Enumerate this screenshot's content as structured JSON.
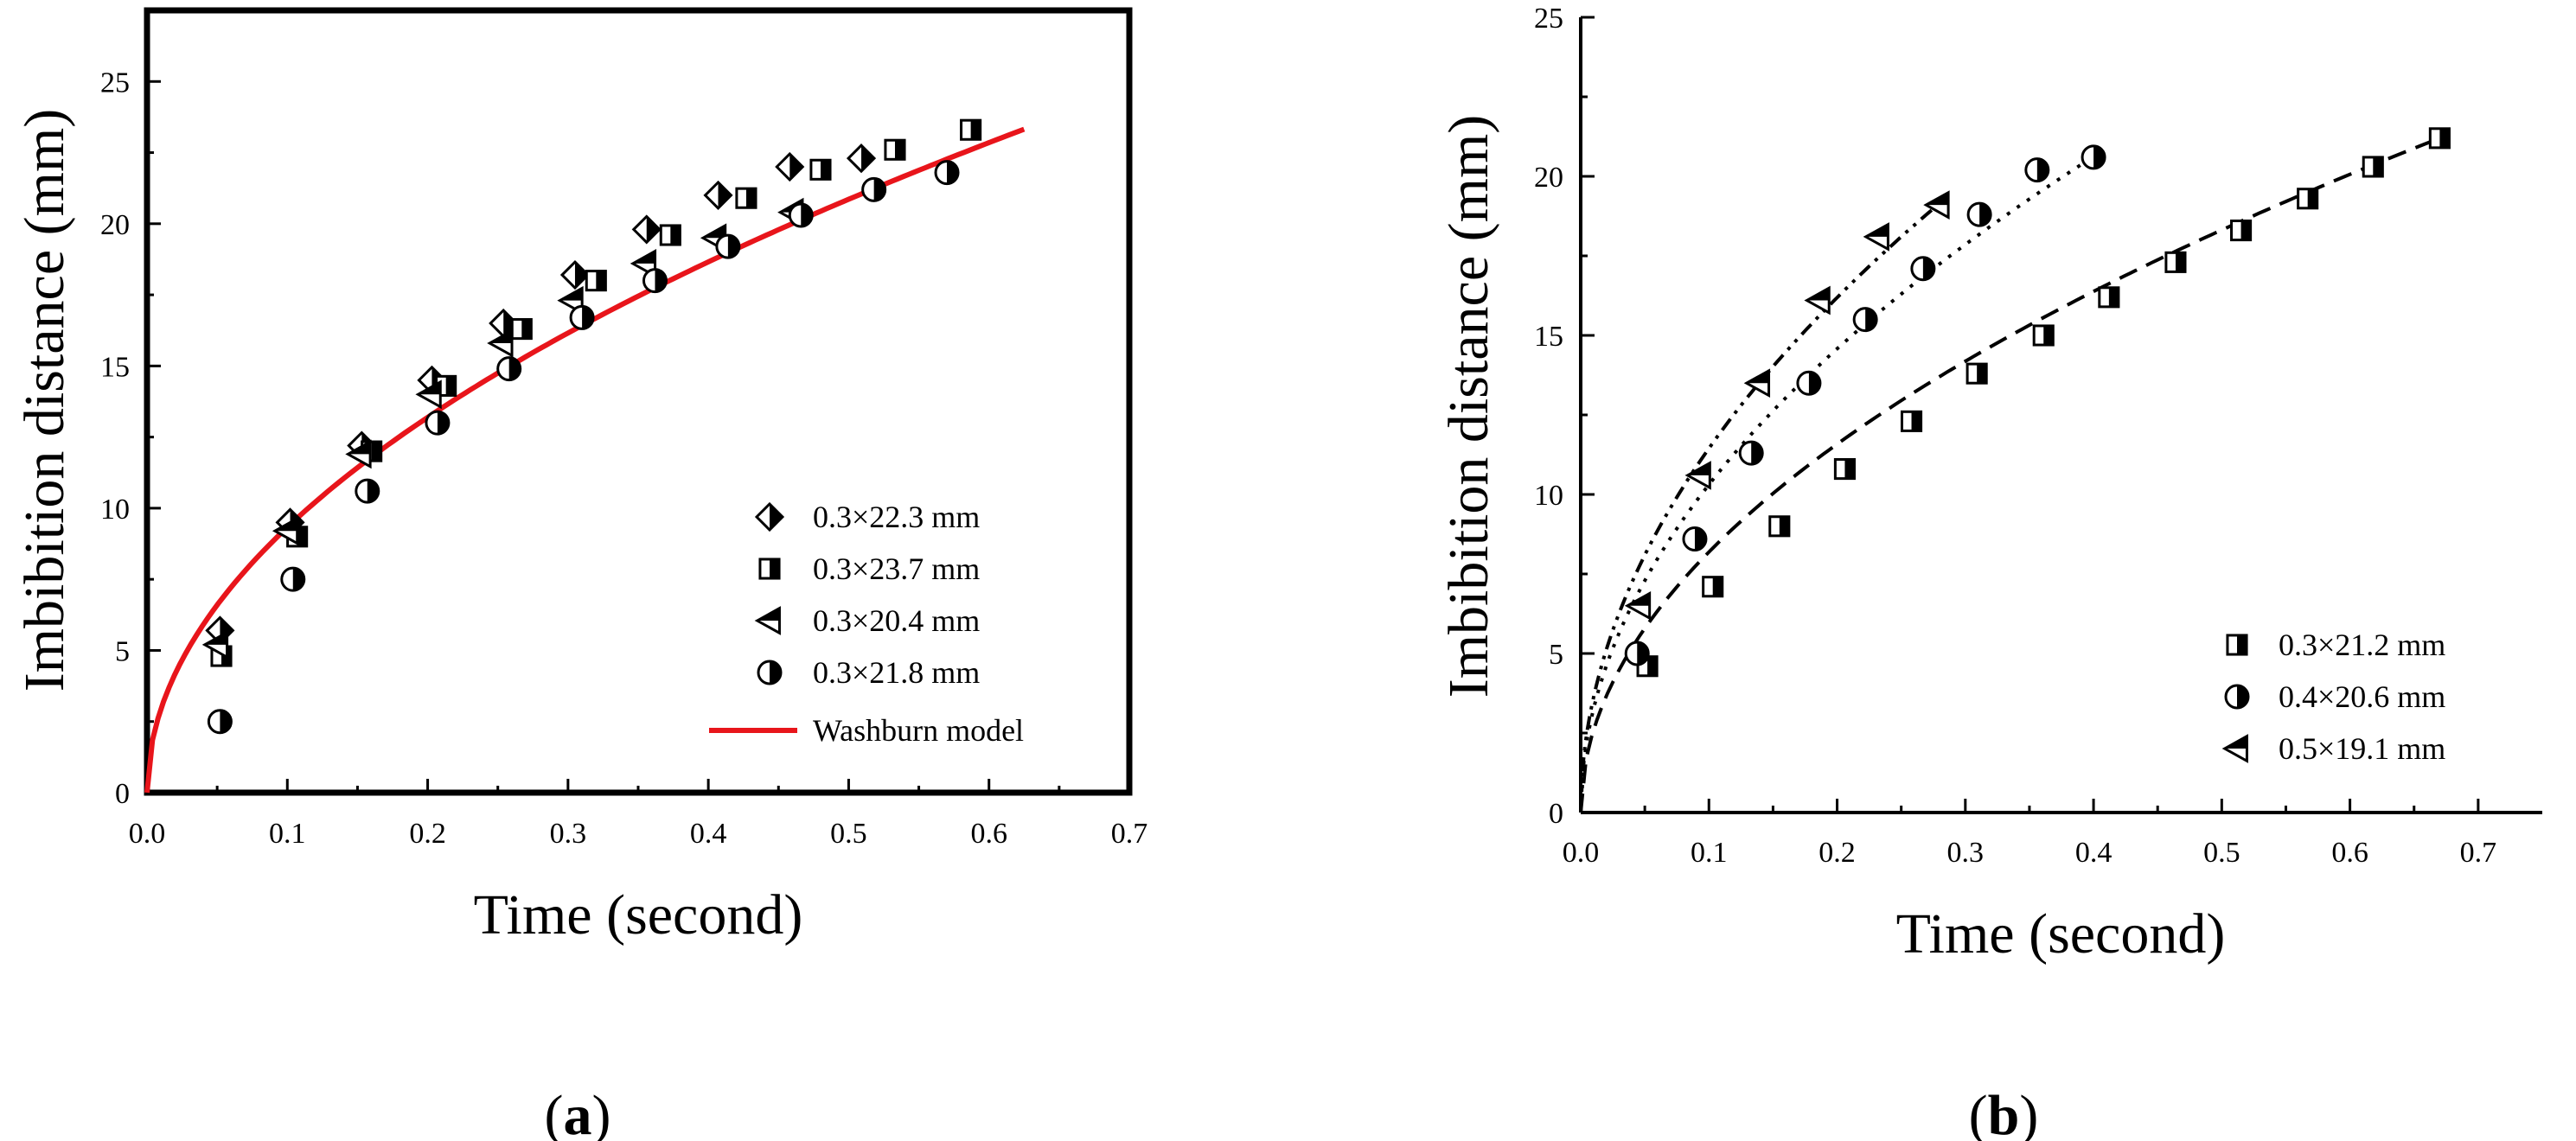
{
  "chart_data": [
    {
      "id": "a",
      "type": "scatter",
      "panel_label": "a",
      "xlabel": "Time (second)",
      "ylabel": "Imbibition distance (mm)",
      "xlim": [
        0.0,
        0.7
      ],
      "ylim": [
        0,
        27.5
      ],
      "xticks": [
        0.0,
        0.1,
        0.2,
        0.3,
        0.4,
        0.5,
        0.6,
        0.7
      ],
      "xtick_labels": [
        "0.0",
        "0.1",
        "0.2",
        "0.3",
        "0.4",
        "0.5",
        "0.6",
        "0.7"
      ],
      "yticks": [
        0,
        5,
        10,
        15,
        20,
        25
      ],
      "ytick_labels": [
        "0",
        "5",
        "10",
        "15",
        "20",
        "25"
      ],
      "legend_position": "bottom-right",
      "series": [
        {
          "name": "0.3×22.3 mm",
          "marker": "diamond-half",
          "x": [
            0.052,
            0.102,
            0.153,
            0.203,
            0.254,
            0.305,
            0.356,
            0.407,
            0.458,
            0.509
          ],
          "y": [
            5.7,
            9.5,
            12.2,
            14.5,
            16.5,
            18.2,
            19.8,
            21.0,
            22.0,
            22.3
          ]
        },
        {
          "name": "0.3×23.7 mm",
          "marker": "square-half",
          "x": [
            0.053,
            0.107,
            0.16,
            0.213,
            0.267,
            0.32,
            0.373,
            0.427,
            0.48,
            0.533,
            0.587
          ],
          "y": [
            4.8,
            9.0,
            12.0,
            14.3,
            16.3,
            18.0,
            19.6,
            20.9,
            21.9,
            22.6,
            23.3
          ]
        },
        {
          "name": "0.3×20.4 mm",
          "marker": "triangle-left-half",
          "x": [
            0.05,
            0.1,
            0.152,
            0.202,
            0.253,
            0.303,
            0.355,
            0.405,
            0.46
          ],
          "y": [
            5.2,
            9.2,
            11.9,
            14.0,
            15.8,
            17.3,
            18.6,
            19.5,
            20.4
          ]
        },
        {
          "name": "0.3×21.8 mm",
          "marker": "circle-half",
          "x": [
            0.052,
            0.104,
            0.157,
            0.207,
            0.258,
            0.31,
            0.362,
            0.414,
            0.466,
            0.518,
            0.57
          ],
          "y": [
            2.5,
            7.5,
            10.6,
            13.0,
            14.9,
            16.7,
            18.0,
            19.2,
            20.3,
            21.2,
            21.8
          ]
        }
      ],
      "curves": [
        {
          "name": "Washburn model",
          "style": "solid",
          "color": "#e8151b",
          "k": 29.5,
          "x_range": [
            0,
            0.625
          ]
        }
      ]
    },
    {
      "id": "b",
      "type": "scatter",
      "panel_label": "b",
      "xlabel": "Time (second)",
      "ylabel": "Imbibition distance (mm)",
      "xlim": [
        0.0,
        0.75
      ],
      "ylim": [
        0,
        25
      ],
      "xticks": [
        0.0,
        0.1,
        0.2,
        0.3,
        0.4,
        0.5,
        0.6,
        0.7
      ],
      "xtick_labels": [
        "0.0",
        "0.1",
        "0.2",
        "0.3",
        "0.4",
        "0.5",
        "0.6",
        "0.7"
      ],
      "yticks": [
        0,
        5,
        10,
        15,
        20,
        25
      ],
      "ytick_labels": [
        "0",
        "5",
        "10",
        "15",
        "20",
        "25"
      ],
      "legend_position": "bottom-right",
      "series": [
        {
          "name": "0.3×21.2 mm",
          "marker": "square-half",
          "x": [
            0.052,
            0.103,
            0.155,
            0.206,
            0.258,
            0.309,
            0.361,
            0.412,
            0.464,
            0.515,
            0.567,
            0.618,
            0.67
          ],
          "y": [
            4.6,
            7.1,
            9.0,
            10.8,
            12.3,
            13.8,
            15.0,
            16.2,
            17.3,
            18.3,
            19.3,
            20.3,
            21.2
          ]
        },
        {
          "name": "0.4×20.6 mm",
          "marker": "circle-half",
          "x": [
            0.044,
            0.089,
            0.133,
            0.178,
            0.222,
            0.267,
            0.311,
            0.356,
            0.4
          ],
          "y": [
            5.0,
            8.6,
            11.3,
            13.5,
            15.5,
            17.1,
            18.8,
            20.2,
            20.6
          ]
        },
        {
          "name": "0.5×19.1 mm",
          "marker": "triangle-left-half",
          "x": [
            0.046,
            0.093,
            0.139,
            0.186,
            0.232,
            0.279
          ],
          "y": [
            6.5,
            10.6,
            13.5,
            16.1,
            18.1,
            19.1
          ]
        }
      ],
      "curves": [
        {
          "style": "dashed",
          "color": "#000000",
          "k": 25.9,
          "x_range": [
            0,
            0.672
          ]
        },
        {
          "style": "dotted",
          "color": "#000000",
          "k": 32.6,
          "x_range": [
            0,
            0.402
          ]
        },
        {
          "style": "dashdotdot",
          "color": "#000000",
          "k": 36.2,
          "x_range": [
            0,
            0.28
          ]
        }
      ]
    }
  ]
}
